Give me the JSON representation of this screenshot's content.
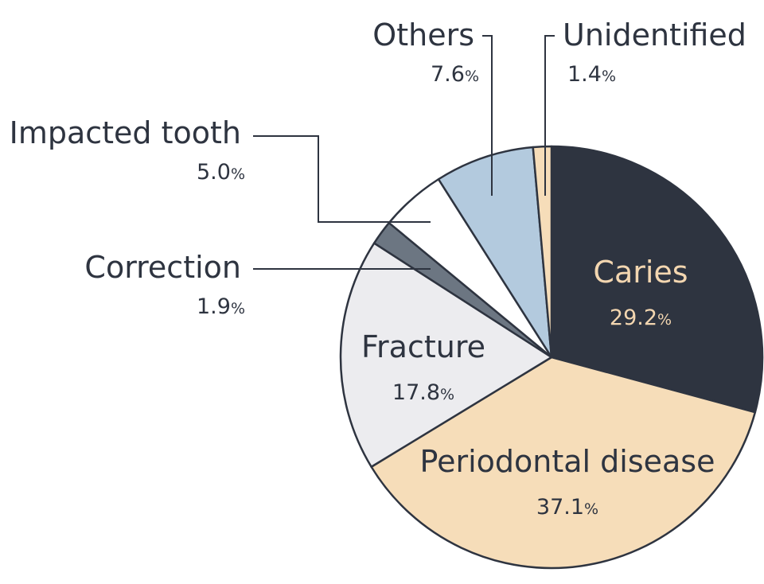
{
  "chart_data": {
    "type": "pie",
    "title": "",
    "start": "12 o'clock",
    "direction": "clockwise",
    "percent_sign": "%",
    "slices": [
      {
        "label": "Caries",
        "value": 29.2,
        "display": "29.2",
        "color": "#2e3440",
        "text_color": "#f3d6b0"
      },
      {
        "label": "Periodontal disease",
        "value": 37.1,
        "display": "37.1",
        "color": "#f6ddb9",
        "text_color": "#2e3440"
      },
      {
        "label": "Fracture",
        "value": 17.8,
        "display": "17.8",
        "color": "#ececef",
        "text_color": "#2e3440"
      },
      {
        "label": "Correction",
        "value": 1.9,
        "display": "1.9",
        "color": "#6c7682",
        "text_color": "#2e3440"
      },
      {
        "label": "Impacted tooth",
        "value": 5.0,
        "display": "5.0",
        "color": "#ffffff",
        "text_color": "#2e3440"
      },
      {
        "label": "Others",
        "value": 7.6,
        "display": "7.6",
        "color": "#b3cade",
        "text_color": "#2e3440"
      },
      {
        "label": "Unidentified",
        "value": 1.4,
        "display": "1.4",
        "color": "#f6ddb9",
        "text_color": "#2e3440"
      }
    ],
    "outline_color": "#2e3440",
    "leader_color": "#2e3440"
  }
}
